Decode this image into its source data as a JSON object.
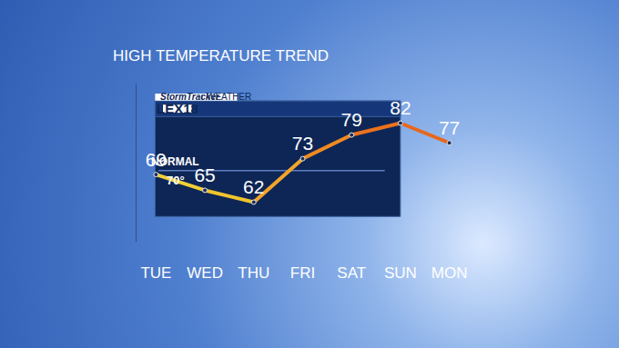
{
  "chart_data": {
    "type": "line",
    "title": "HIGH TEMPERATURE TREND",
    "annotations": [
      "StormTracker",
      "WEATHER",
      "LEX18"
    ],
    "categories": [
      "TUE",
      "WED",
      "THU",
      "FRI",
      "SAT",
      "SUN",
      "MON"
    ],
    "values": [
      69,
      65,
      62,
      73,
      79,
      82,
      77
    ],
    "colors": [
      "#f3d63e",
      "#f2cf36",
      "#f0c42c",
      "#f3a52a",
      "#f08a22",
      "#ec721c",
      "#e9661a"
    ],
    "marker": "circle",
    "data_labels": true,
    "ylim": [
      52,
      92
    ],
    "yticks": [],
    "tick_labels": "x",
    "grid": false,
    "normal": {
      "value": 70,
      "label": "NORMAL",
      "value_label": "70°"
    }
  }
}
